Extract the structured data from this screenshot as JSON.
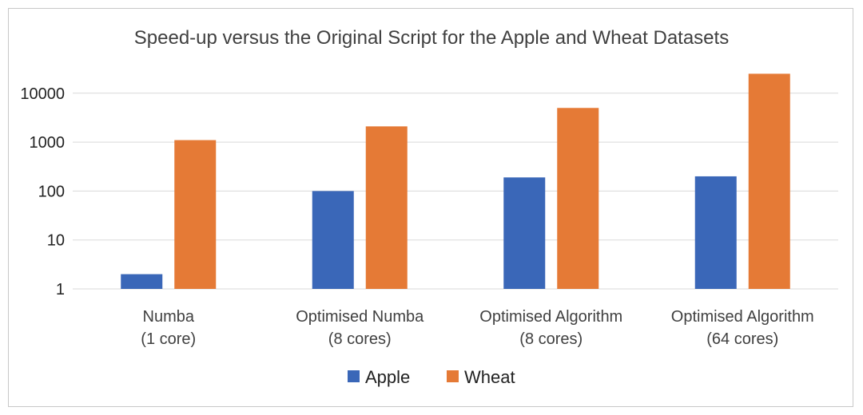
{
  "chart_data": {
    "type": "bar",
    "title": "Speed-up versus the Original Script for the Apple and Wheat Datasets",
    "xlabel": "",
    "ylabel": "",
    "y_scale": "log",
    "ylim": [
      1,
      30000
    ],
    "y_ticks": [
      {
        "value": 1,
        "label": "1"
      },
      {
        "value": 10,
        "label": "10"
      },
      {
        "value": 100,
        "label": "100"
      },
      {
        "value": 1000,
        "label": "1000"
      },
      {
        "value": 10000,
        "label": "10000"
      }
    ],
    "categories": [
      [
        "Numba",
        "(1 core)"
      ],
      [
        "Optimised Numba",
        "(8 cores)"
      ],
      [
        "Optimised Algorithm",
        "(8 cores)"
      ],
      [
        "Optimised Algorithm",
        "(64 cores)"
      ]
    ],
    "series": [
      {
        "name": "Apple",
        "color": "#3a67b8",
        "values": [
          2,
          100,
          190,
          200
        ]
      },
      {
        "name": "Wheat",
        "color": "#e57a36",
        "values": [
          1100,
          2100,
          5000,
          25000
        ]
      }
    ],
    "grid": true,
    "legend_position": "bottom"
  }
}
